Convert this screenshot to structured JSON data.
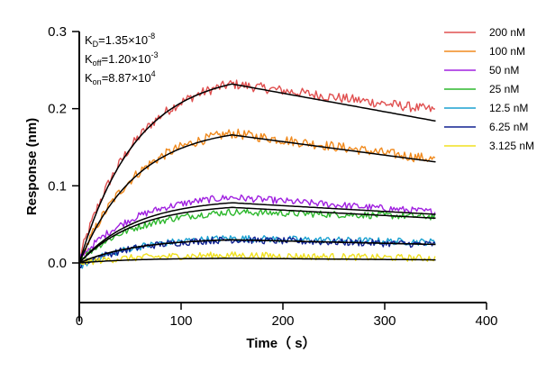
{
  "chart_data": {
    "type": "line",
    "title": "",
    "xlabel": "Time（ s）",
    "ylabel": "Response (nm)",
    "xlim": [
      0,
      400
    ],
    "ylim": [
      -0.05,
      0.3
    ],
    "x_ticks": [
      0,
      100,
      200,
      300,
      400
    ],
    "y_ticks": [
      0.0,
      0.1,
      0.2,
      0.3
    ],
    "x_tick_labels": [
      "0",
      "100",
      "200",
      "300",
      "400"
    ],
    "y_tick_labels": [
      "0.0",
      "0.1",
      "0.2",
      "0.3"
    ],
    "grid": false,
    "legend_position": "top-right",
    "annotations": {
      "kd": {
        "prefix": "K",
        "sub": "D",
        "value": "=1.35×10",
        "exp": "-8"
      },
      "koff": {
        "prefix": "K",
        "sub": "off",
        "value": "=1.20×10",
        "exp": "-3"
      },
      "kon": {
        "prefix": "K",
        "sub": "on",
        "value": "=8.87×10",
        "exp": "4"
      }
    },
    "association_end": 150,
    "x_end": 350,
    "series": [
      {
        "name": "200 nM",
        "color": "#e05050",
        "peak": 0.232,
        "end": 0.198,
        "fit_peak": 0.232,
        "fit_end": 0.184,
        "start": 0.005
      },
      {
        "name": "100 nM",
        "color": "#f08a1e",
        "peak": 0.168,
        "end": 0.134,
        "fit_peak": 0.166,
        "fit_end": 0.131,
        "start": 0.0
      },
      {
        "name": "50 nM",
        "color": "#a020e0",
        "peak": 0.085,
        "end": 0.066,
        "fit_peak": 0.078,
        "fit_end": 0.063,
        "start": 0.005
      },
      {
        "name": "25 nM",
        "color": "#2db82d",
        "peak": 0.066,
        "end": 0.06,
        "fit_peak": 0.072,
        "fit_end": 0.058,
        "start": 0.003
      },
      {
        "name": "12.5 nM",
        "color": "#1aa0d0",
        "peak": 0.032,
        "end": 0.027,
        "fit_peak": 0.03,
        "fit_end": 0.024,
        "start": -0.005
      },
      {
        "name": "6.25 nM",
        "color": "#102090",
        "peak": 0.03,
        "end": 0.024,
        "fit_peak": 0.03,
        "fit_end": 0.024,
        "start": -0.003
      },
      {
        "name": "3.125 nM",
        "color": "#f0e020",
        "peak": 0.01,
        "end": 0.006,
        "fit_peak": 0.006,
        "fit_end": 0.004,
        "start": 0.0
      }
    ]
  }
}
